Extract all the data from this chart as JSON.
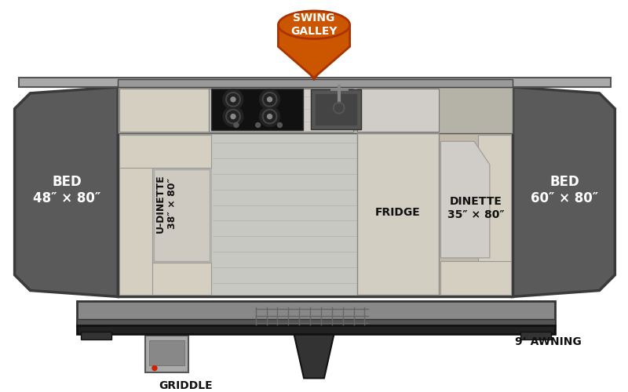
{
  "bg_color": "#ffffff",
  "bed_carpet_color": "#5a5a5a",
  "cushion_color": "#d4cfc0",
  "marble_color": "#d0cdc8",
  "badge_orange": "#cc5500",
  "badge_text": "#ffffff",
  "label_color": "#111111",
  "title": "SWING\nGALLEY",
  "bed_left_label": "BED\n48″ × 80″",
  "bed_right_label": "BED\n60″ × 80″",
  "udinette_label": "U-DINETTE\n38″ × 80″",
  "dinette_label": "DINETTE\n35″ × 80″",
  "fridge_label": "FRIDGE",
  "griddle_label": "GRIDDLE",
  "awning_label": "9’ AWNING"
}
